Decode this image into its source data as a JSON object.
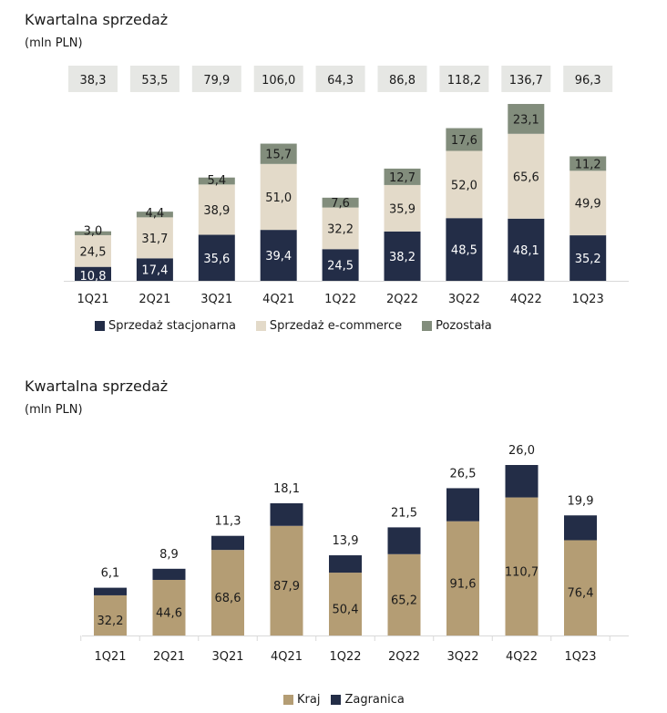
{
  "chart_data": [
    {
      "type": "bar",
      "stacked": true,
      "title": "Kwartalna sprzedaż",
      "subtitle": "(mln PLN)",
      "categories": [
        "1Q21",
        "2Q21",
        "3Q21",
        "4Q21",
        "1Q22",
        "2Q22",
        "3Q22",
        "4Q22",
        "1Q23"
      ],
      "series": [
        {
          "name": "Sprzedaż stacjonarna",
          "color": "#232d47",
          "label_color": "#ffffff",
          "values": [
            10.8,
            17.4,
            35.6,
            39.4,
            24.5,
            38.2,
            48.5,
            48.1,
            35.2
          ],
          "labels": [
            "10,8",
            "17,4",
            "35,6",
            "39,4",
            "24,5",
            "38,2",
            "48,5",
            "48,1",
            "35,2"
          ]
        },
        {
          "name": "Sprzedaż e-commerce",
          "color": "#e3dac9",
          "label_color": "#1b1b1b",
          "values": [
            24.5,
            31.7,
            38.9,
            51.0,
            32.2,
            35.9,
            52.0,
            65.6,
            49.9
          ],
          "labels": [
            "24,5",
            "31,7",
            "38,9",
            "51,0",
            "32,2",
            "35,9",
            "52,0",
            "65,6",
            "49,9"
          ]
        },
        {
          "name": "Pozostała",
          "color": "#828d7c",
          "label_color": "#1b1b1b",
          "values": [
            3.0,
            4.4,
            5.4,
            15.7,
            7.6,
            12.7,
            17.6,
            23.1,
            11.2
          ],
          "labels": [
            "3,0",
            "4,4",
            "5,4",
            "15,7",
            "7,6",
            "12,7",
            "17,6",
            "23,1",
            "11,2"
          ]
        }
      ],
      "totals": [
        38.3,
        53.5,
        79.9,
        106.0,
        64.3,
        86.8,
        118.2,
        136.7,
        96.3
      ],
      "total_labels": [
        "38,3",
        "53,5",
        "79,9",
        "106,0",
        "64,3",
        "86,8",
        "118,2",
        "136,7",
        "96,3"
      ],
      "total_box_color": "#e6e7e4",
      "xlabel": "",
      "ylabel": "",
      "ylim": [
        0,
        140
      ],
      "grid": false,
      "legend_position": "bottom"
    },
    {
      "type": "bar",
      "stacked": true,
      "title": "Kwartalna sprzedaż",
      "subtitle": "(mln PLN)",
      "categories": [
        "1Q21",
        "2Q21",
        "3Q21",
        "4Q21",
        "1Q22",
        "2Q22",
        "3Q22",
        "4Q22",
        "1Q23"
      ],
      "series": [
        {
          "name": "Kraj",
          "color": "#b49d74",
          "label_color": "#1b1b1b",
          "values": [
            32.2,
            44.6,
            68.6,
            87.9,
            50.4,
            65.2,
            91.6,
            110.7,
            76.4
          ],
          "labels": [
            "32,2",
            "44,6",
            "68,6",
            "87,9",
            "50,4",
            "65,2",
            "91,6",
            "110,7",
            "76,4"
          ]
        },
        {
          "name": "Zagranica",
          "color": "#232d47",
          "label_color": "#1b1b1b",
          "values": [
            6.1,
            8.9,
            11.3,
            18.1,
            13.9,
            21.5,
            26.5,
            26.0,
            19.9
          ],
          "labels": [
            "6,1",
            "8,9",
            "11,3",
            "18,1",
            "13,9",
            "21,5",
            "26,5",
            "26,0",
            "19,9"
          ]
        }
      ],
      "xlabel": "",
      "ylabel": "",
      "ylim": [
        0,
        140
      ],
      "grid": false,
      "legend_position": "bottom"
    }
  ]
}
